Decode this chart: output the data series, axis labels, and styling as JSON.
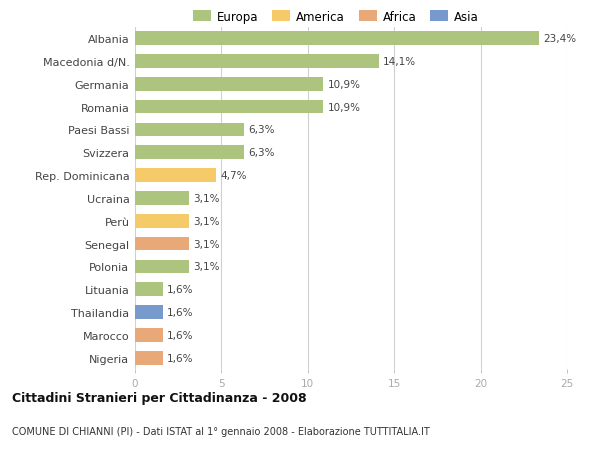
{
  "categories": [
    "Albania",
    "Macedonia d/N.",
    "Germania",
    "Romania",
    "Paesi Bassi",
    "Svizzera",
    "Rep. Dominicana",
    "Ucraina",
    "Perù",
    "Senegal",
    "Polonia",
    "Lituania",
    "Thailandia",
    "Marocco",
    "Nigeria"
  ],
  "values": [
    23.4,
    14.1,
    10.9,
    10.9,
    6.3,
    6.3,
    4.7,
    3.1,
    3.1,
    3.1,
    3.1,
    1.6,
    1.6,
    1.6,
    1.6
  ],
  "labels": [
    "23,4%",
    "14,1%",
    "10,9%",
    "10,9%",
    "6,3%",
    "6,3%",
    "4,7%",
    "3,1%",
    "3,1%",
    "3,1%",
    "3,1%",
    "1,6%",
    "1,6%",
    "1,6%",
    "1,6%"
  ],
  "colors": [
    "#adc47e",
    "#adc47e",
    "#adc47e",
    "#adc47e",
    "#adc47e",
    "#adc47e",
    "#f5cb6a",
    "#adc47e",
    "#f5cb6a",
    "#e8a878",
    "#adc47e",
    "#adc47e",
    "#7799cc",
    "#e8a878",
    "#e8a878"
  ],
  "legend_labels": [
    "Europa",
    "America",
    "Africa",
    "Asia"
  ],
  "legend_colors": [
    "#adc47e",
    "#f5cb6a",
    "#e8a878",
    "#7799cc"
  ],
  "title": "Cittadini Stranieri per Cittadinanza - 2008",
  "subtitle": "COMUNE DI CHIANNI (PI) - Dati ISTAT al 1° gennaio 2008 - Elaborazione TUTTITALIA.IT",
  "xlim": [
    0,
    25
  ],
  "xticks": [
    0,
    5,
    10,
    15,
    20,
    25
  ],
  "bg_color": "#ffffff",
  "grid_color": "#d0d0d0",
  "bar_height": 0.6
}
